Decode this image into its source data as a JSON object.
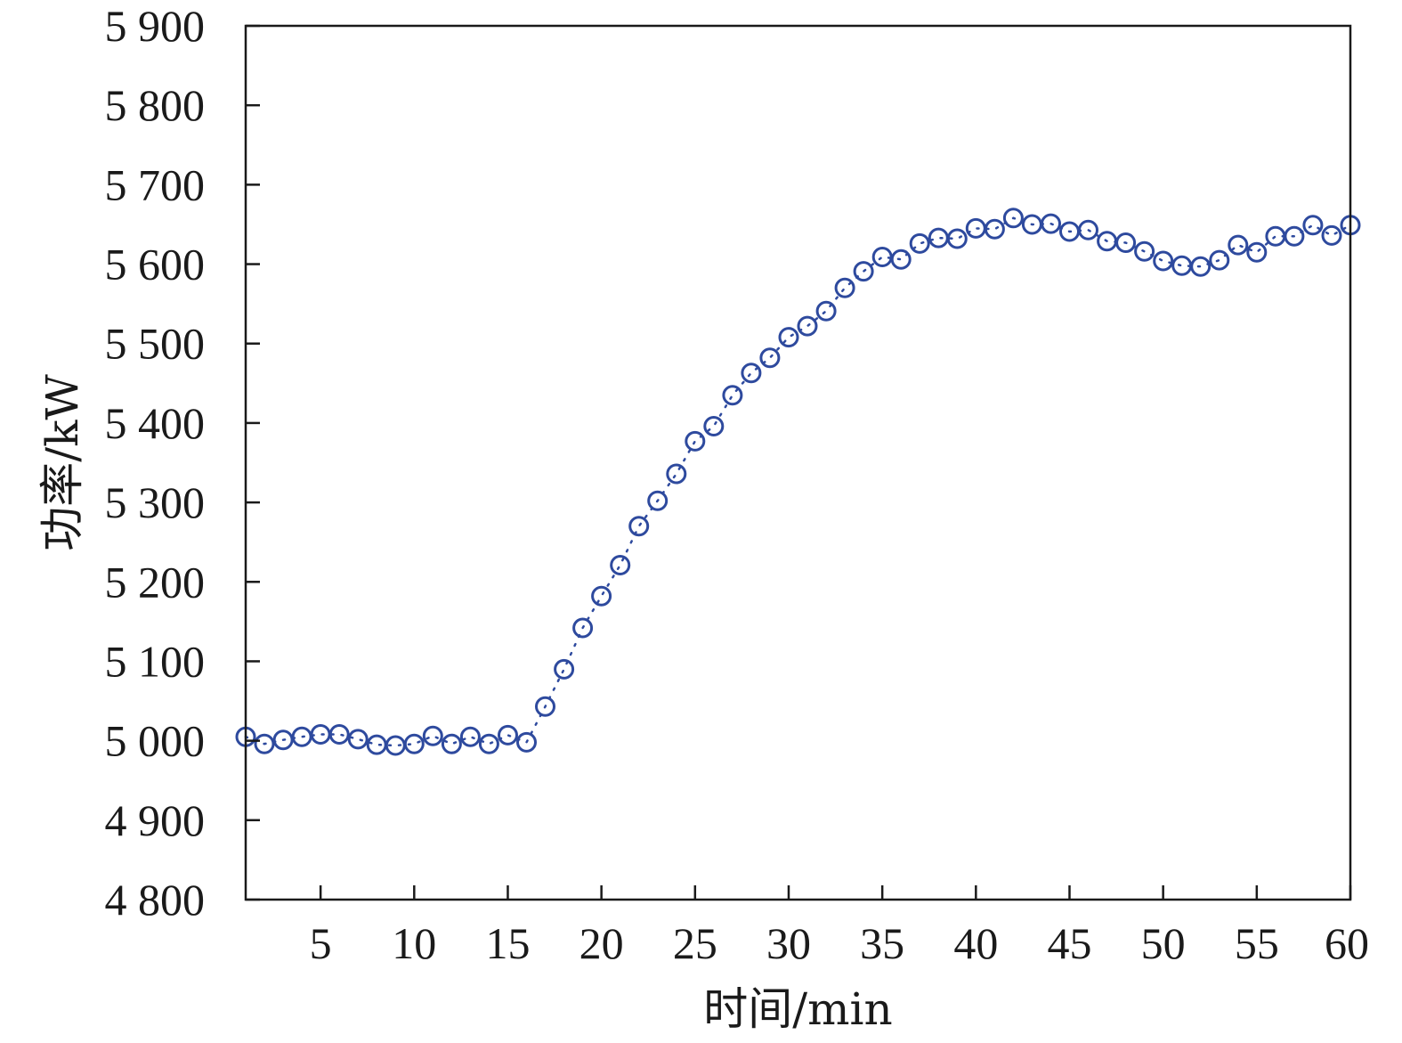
{
  "chart_data": {
    "type": "scatter",
    "xlabel": "时间/min",
    "ylabel": "功率/kW",
    "xlim": [
      1,
      60
    ],
    "ylim": [
      4800,
      5900
    ],
    "x_ticks": [
      5,
      10,
      15,
      20,
      25,
      30,
      35,
      40,
      45,
      50,
      55,
      60
    ],
    "x_tick_labels": [
      "5",
      "10",
      "15",
      "20",
      "25",
      "30",
      "35",
      "40",
      "45",
      "50",
      "55",
      "60"
    ],
    "y_ticks": [
      4800,
      4900,
      5000,
      5100,
      5200,
      5300,
      5400,
      5500,
      5600,
      5700,
      5800,
      5900
    ],
    "y_tick_labels": [
      "4 800",
      "4 900",
      "5 000",
      "5 100",
      "5 200",
      "5 300",
      "5 400",
      "5 500",
      "5 600",
      "5 700",
      "5 800",
      "5 900"
    ],
    "grid": false,
    "marker": "open-circle",
    "line_style": "dotted",
    "colors": {
      "series": "#2e4a9e",
      "axis": "#1a1a1a"
    },
    "series": [
      {
        "x": [
          1,
          2,
          3,
          4,
          5,
          6,
          7,
          8,
          9,
          10,
          11,
          12,
          13,
          14,
          15,
          16,
          17,
          18,
          19,
          20,
          21,
          22,
          23,
          24,
          25,
          26,
          27,
          28,
          29,
          30,
          31,
          32,
          33,
          34,
          35,
          36,
          37,
          38,
          39,
          40,
          41,
          42,
          43,
          44,
          45,
          46,
          47,
          48,
          49,
          50,
          51,
          52,
          53,
          54,
          55,
          56,
          57,
          58,
          59,
          60
        ],
        "values": [
          5005,
          4996,
          5001,
          5005,
          5008,
          5008,
          5002,
          4995,
          4994,
          4996,
          5006,
          4996,
          5005,
          4996,
          5007,
          4998,
          5043,
          5090,
          5142,
          5182,
          5221,
          5270,
          5302,
          5336,
          5377,
          5396,
          5435,
          5463,
          5482,
          5508,
          5522,
          5541,
          5570,
          5591,
          5609,
          5606,
          5626,
          5633,
          5632,
          5645,
          5644,
          5658,
          5650,
          5651,
          5641,
          5643,
          5629,
          5627,
          5616,
          5604,
          5598,
          5597,
          5605,
          5624,
          5615,
          5635,
          5635,
          5649,
          5636,
          5649
        ]
      }
    ]
  }
}
